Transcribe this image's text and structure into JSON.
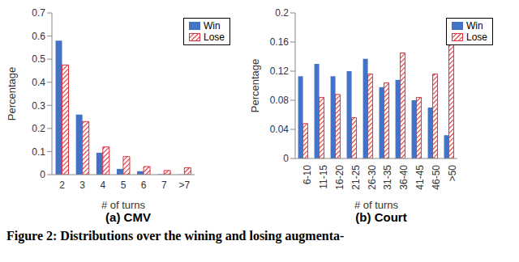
{
  "chart_data": [
    {
      "type": "bar",
      "title": "(a) CMV",
      "x_label": "# of turns",
      "y_label": "Percentage",
      "categories": [
        "2",
        "3",
        "4",
        "5",
        "6",
        "7",
        ">7"
      ],
      "series": [
        {
          "name": "Win",
          "color": "#4472c4",
          "values": [
            0.58,
            0.26,
            0.095,
            0.025,
            0.015,
            0.002,
            0.001
          ]
        },
        {
          "name": "Lose",
          "color": "#e0303a",
          "values": [
            0.475,
            0.23,
            0.12,
            0.078,
            0.035,
            0.018,
            0.03
          ]
        }
      ],
      "ylim": [
        0,
        0.7
      ],
      "yticks": [
        0,
        0.1,
        0.2,
        0.3,
        0.4,
        0.5,
        0.6,
        0.7
      ],
      "legend": "top-right",
      "grid": false
    },
    {
      "type": "bar",
      "title": "(b) Court",
      "x_label": "# of turns",
      "y_label": "Percentage",
      "categories": [
        "6-10",
        "11-15",
        "16-20",
        "21-25",
        "26-30",
        "31-35",
        "36-40",
        "41-45",
        "46-50",
        ">50"
      ],
      "series": [
        {
          "name": "Win",
          "color": "#4472c4",
          "values": [
            0.113,
            0.13,
            0.113,
            0.12,
            0.137,
            0.098,
            0.108,
            0.08,
            0.07,
            0.032
          ]
        },
        {
          "name": "Lose",
          "color": "#e0303a",
          "values": [
            0.048,
            0.084,
            0.088,
            0.056,
            0.116,
            0.104,
            0.145,
            0.084,
            0.116,
            0.156
          ]
        }
      ],
      "ylim": [
        0,
        0.2
      ],
      "yticks": [
        0,
        0.04,
        0.08,
        0.12,
        0.16,
        0.2
      ],
      "legend": "top-right",
      "grid": false
    }
  ],
  "caption": "Figure 2: Distributions over the wining and losing augmenta-"
}
